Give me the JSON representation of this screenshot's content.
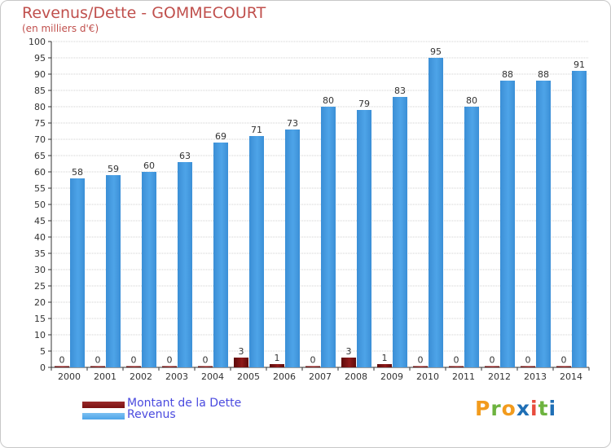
{
  "title": "Revenus/Dette - GOMMECOURT",
  "subtitle": "(en milliers d'€)",
  "colors": {
    "debt": "#7a1111",
    "revenue": "#4ea4e8",
    "text": "#c0504d",
    "axis": "#333333",
    "grid": "#d0d0d0",
    "legend_text": "#4a4adf"
  },
  "chart_data": {
    "type": "bar",
    "title": "Revenus/Dette - GOMMECOURT",
    "ylabel": "(en milliers d'€)",
    "xlabel": "",
    "ylim": [
      0,
      100
    ],
    "yticks": [
      0,
      5,
      10,
      15,
      20,
      25,
      30,
      35,
      40,
      45,
      50,
      55,
      60,
      65,
      70,
      75,
      80,
      85,
      90,
      95,
      100
    ],
    "grid": true,
    "legend_position": "bottom-left",
    "categories": [
      "2000",
      "2001",
      "2002",
      "2003",
      "2004",
      "2005",
      "2006",
      "2007",
      "2008",
      "2009",
      "2010",
      "2011",
      "2012",
      "2013",
      "2014"
    ],
    "series": [
      {
        "name": "Montant de la Dette",
        "values": [
          0,
          0,
          0,
          0,
          0,
          3,
          1,
          0,
          3,
          1,
          0,
          0,
          0,
          0,
          0
        ]
      },
      {
        "name": "Revenus",
        "values": [
          58,
          59,
          60,
          63,
          69,
          71,
          73,
          80,
          79,
          83,
          95,
          80,
          88,
          88,
          91
        ]
      }
    ]
  },
  "legend": [
    {
      "label": "Montant de la Dette"
    },
    {
      "label": "Revenus"
    }
  ],
  "logo": {
    "letters": [
      "P",
      "r",
      "o",
      "x",
      "i",
      "t",
      "i"
    ],
    "colors": [
      "#f29b1d",
      "#6db33f",
      "#f29b1d",
      "#1f6fb5",
      "#e84c3d",
      "#6db33f",
      "#1f6fb5"
    ]
  }
}
